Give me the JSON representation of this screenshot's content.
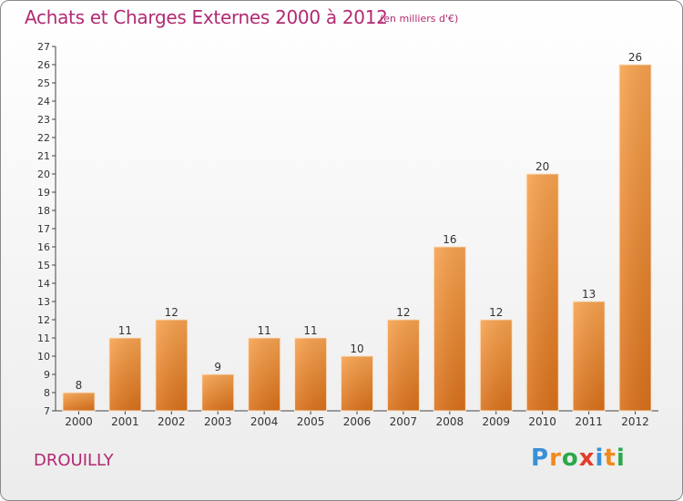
{
  "title": "Achats et Charges Externes 2000 à 2012",
  "subtitle": "(en milliers d'€)",
  "place": "DROUILLY",
  "logo": {
    "letters": [
      "P",
      "r",
      "o",
      "x",
      "i",
      "t",
      "i"
    ],
    "colors": [
      "#3a8fd6",
      "#f08a1c",
      "#2ca84a",
      "#e23c2c",
      "#3a8fd6",
      "#f08a1c",
      "#2ca84a"
    ]
  },
  "colors": {
    "accent": "#b22a72",
    "bar_light": "#f7a24e",
    "bar_dark": "#d9701a"
  },
  "chart_data": {
    "type": "bar",
    "title": "Achats et Charges Externes 2000 à 2012",
    "subtitle": "(en milliers d'€)",
    "categories": [
      "2000",
      "2001",
      "2002",
      "2003",
      "2004",
      "2005",
      "2006",
      "2007",
      "2008",
      "2009",
      "2010",
      "2011",
      "2012"
    ],
    "values": [
      8,
      11,
      12,
      9,
      11,
      11,
      10,
      12,
      16,
      12,
      20,
      13,
      26
    ],
    "ylim": [
      7,
      27
    ],
    "yticks": [
      7,
      8,
      9,
      10,
      11,
      12,
      13,
      14,
      15,
      16,
      17,
      18,
      19,
      20,
      21,
      22,
      23,
      24,
      25,
      26,
      27
    ],
    "grid": false
  }
}
